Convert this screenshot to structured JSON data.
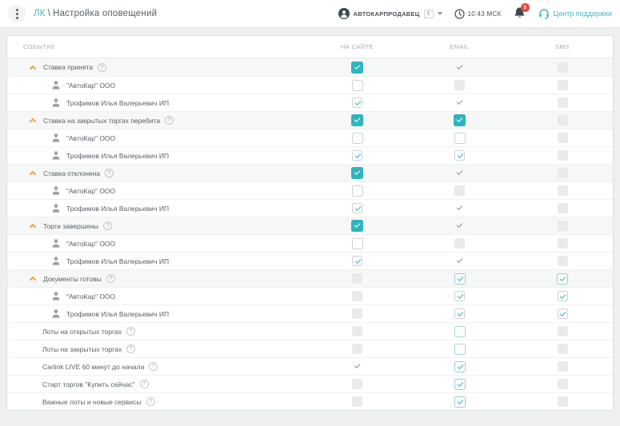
{
  "header": {
    "breadcrumb": {
      "root": "ЛК",
      "separator": "\\",
      "current": "Настройка оповещений"
    },
    "account": {
      "label": "АВТОКАРПРОДАВЕЦ",
      "count": "5"
    },
    "time": "10:43 МСК",
    "notifications_count": "3",
    "support_label": "Центр поддержки"
  },
  "colors": {
    "accent_teal": "#2eb5bf",
    "chevron_orange": "#f0a23c",
    "badge_red": "#e8453c",
    "dark_icon": "#3c4750"
  },
  "table": {
    "columns": [
      "СОБЫТИЕ",
      "НА САЙТЕ",
      "EMAIL",
      "SMS"
    ],
    "help_glyph": "?",
    "rows": [
      {
        "type": "group",
        "label": "Ставка принята",
        "help": true,
        "site": "checked-filled",
        "email": "check-only",
        "sms": "disabled"
      },
      {
        "type": "sub",
        "label": "\"АвтоКар\" ООО",
        "help": false,
        "site": "unchecked",
        "email": "disabled",
        "sms": "disabled"
      },
      {
        "type": "sub",
        "label": "Трофимов Илья Валерьевич ИП",
        "help": false,
        "site": "checked-outline",
        "email": "check-only",
        "sms": "disabled"
      },
      {
        "type": "group",
        "label": "Ставка на закрытых торгах перебита",
        "help": true,
        "site": "checked-filled",
        "email": "checked-filled",
        "sms": "disabled"
      },
      {
        "type": "sub",
        "label": "\"АвтоКар\" ООО",
        "help": false,
        "site": "unchecked",
        "email": "unchecked",
        "sms": "disabled"
      },
      {
        "type": "sub",
        "label": "Трофимов Илья Валерьевич ИП",
        "help": false,
        "site": "checked-outline",
        "email": "checked-outline",
        "sms": "disabled"
      },
      {
        "type": "group",
        "label": "Ставка отклонена",
        "help": true,
        "site": "checked-filled",
        "email": "check-only",
        "sms": "disabled"
      },
      {
        "type": "sub",
        "label": "\"АвтоКар\" ООО",
        "help": false,
        "site": "unchecked",
        "email": "disabled",
        "sms": "disabled"
      },
      {
        "type": "sub",
        "label": "Трофимов Илья Валерьевич ИП",
        "help": false,
        "site": "checked-outline",
        "email": "check-only",
        "sms": "disabled"
      },
      {
        "type": "group",
        "label": "Торги завершены",
        "help": true,
        "site": "checked-filled",
        "email": "check-only",
        "sms": "disabled"
      },
      {
        "type": "sub",
        "label": "\"АвтоКар\" ООО",
        "help": false,
        "site": "unchecked",
        "email": "disabled",
        "sms": "disabled"
      },
      {
        "type": "sub",
        "label": "Трофимов Илья Валерьевич ИП",
        "help": false,
        "site": "checked-outline",
        "email": "check-only",
        "sms": "disabled"
      },
      {
        "type": "group",
        "label": "Документы готовы",
        "help": true,
        "site": "disabled",
        "email": "checked-teal",
        "sms": "checked-teal"
      },
      {
        "type": "sub",
        "label": "\"АвтоКар\" ООО",
        "help": false,
        "site": "disabled",
        "email": "checked-outline",
        "sms": "checked-outline"
      },
      {
        "type": "sub",
        "label": "Трофимов Илья Валерьевич ИП",
        "help": false,
        "site": "disabled",
        "email": "checked-outline",
        "sms": "checked-outline"
      },
      {
        "type": "plain",
        "label": "Лоты на открытых торгах",
        "help": true,
        "site": "disabled",
        "email": "unchecked-teal",
        "sms": "disabled"
      },
      {
        "type": "plain",
        "label": "Лоты на закрытых торгах",
        "help": true,
        "site": "disabled",
        "email": "unchecked-teal",
        "sms": "disabled"
      },
      {
        "type": "plain",
        "label": "Carlink LIVE 60 минут до начала",
        "help": true,
        "site": "check-only",
        "email": "checked-teal",
        "sms": "disabled"
      },
      {
        "type": "plain",
        "label": "Старт торгов \"Купить сейчас\"",
        "help": true,
        "site": "disabled",
        "email": "checked-teal",
        "sms": "disabled"
      },
      {
        "type": "plain",
        "label": "Важные лоты и новые сервисы",
        "help": true,
        "site": "disabled",
        "email": "checked-teal",
        "sms": "disabled"
      }
    ]
  }
}
